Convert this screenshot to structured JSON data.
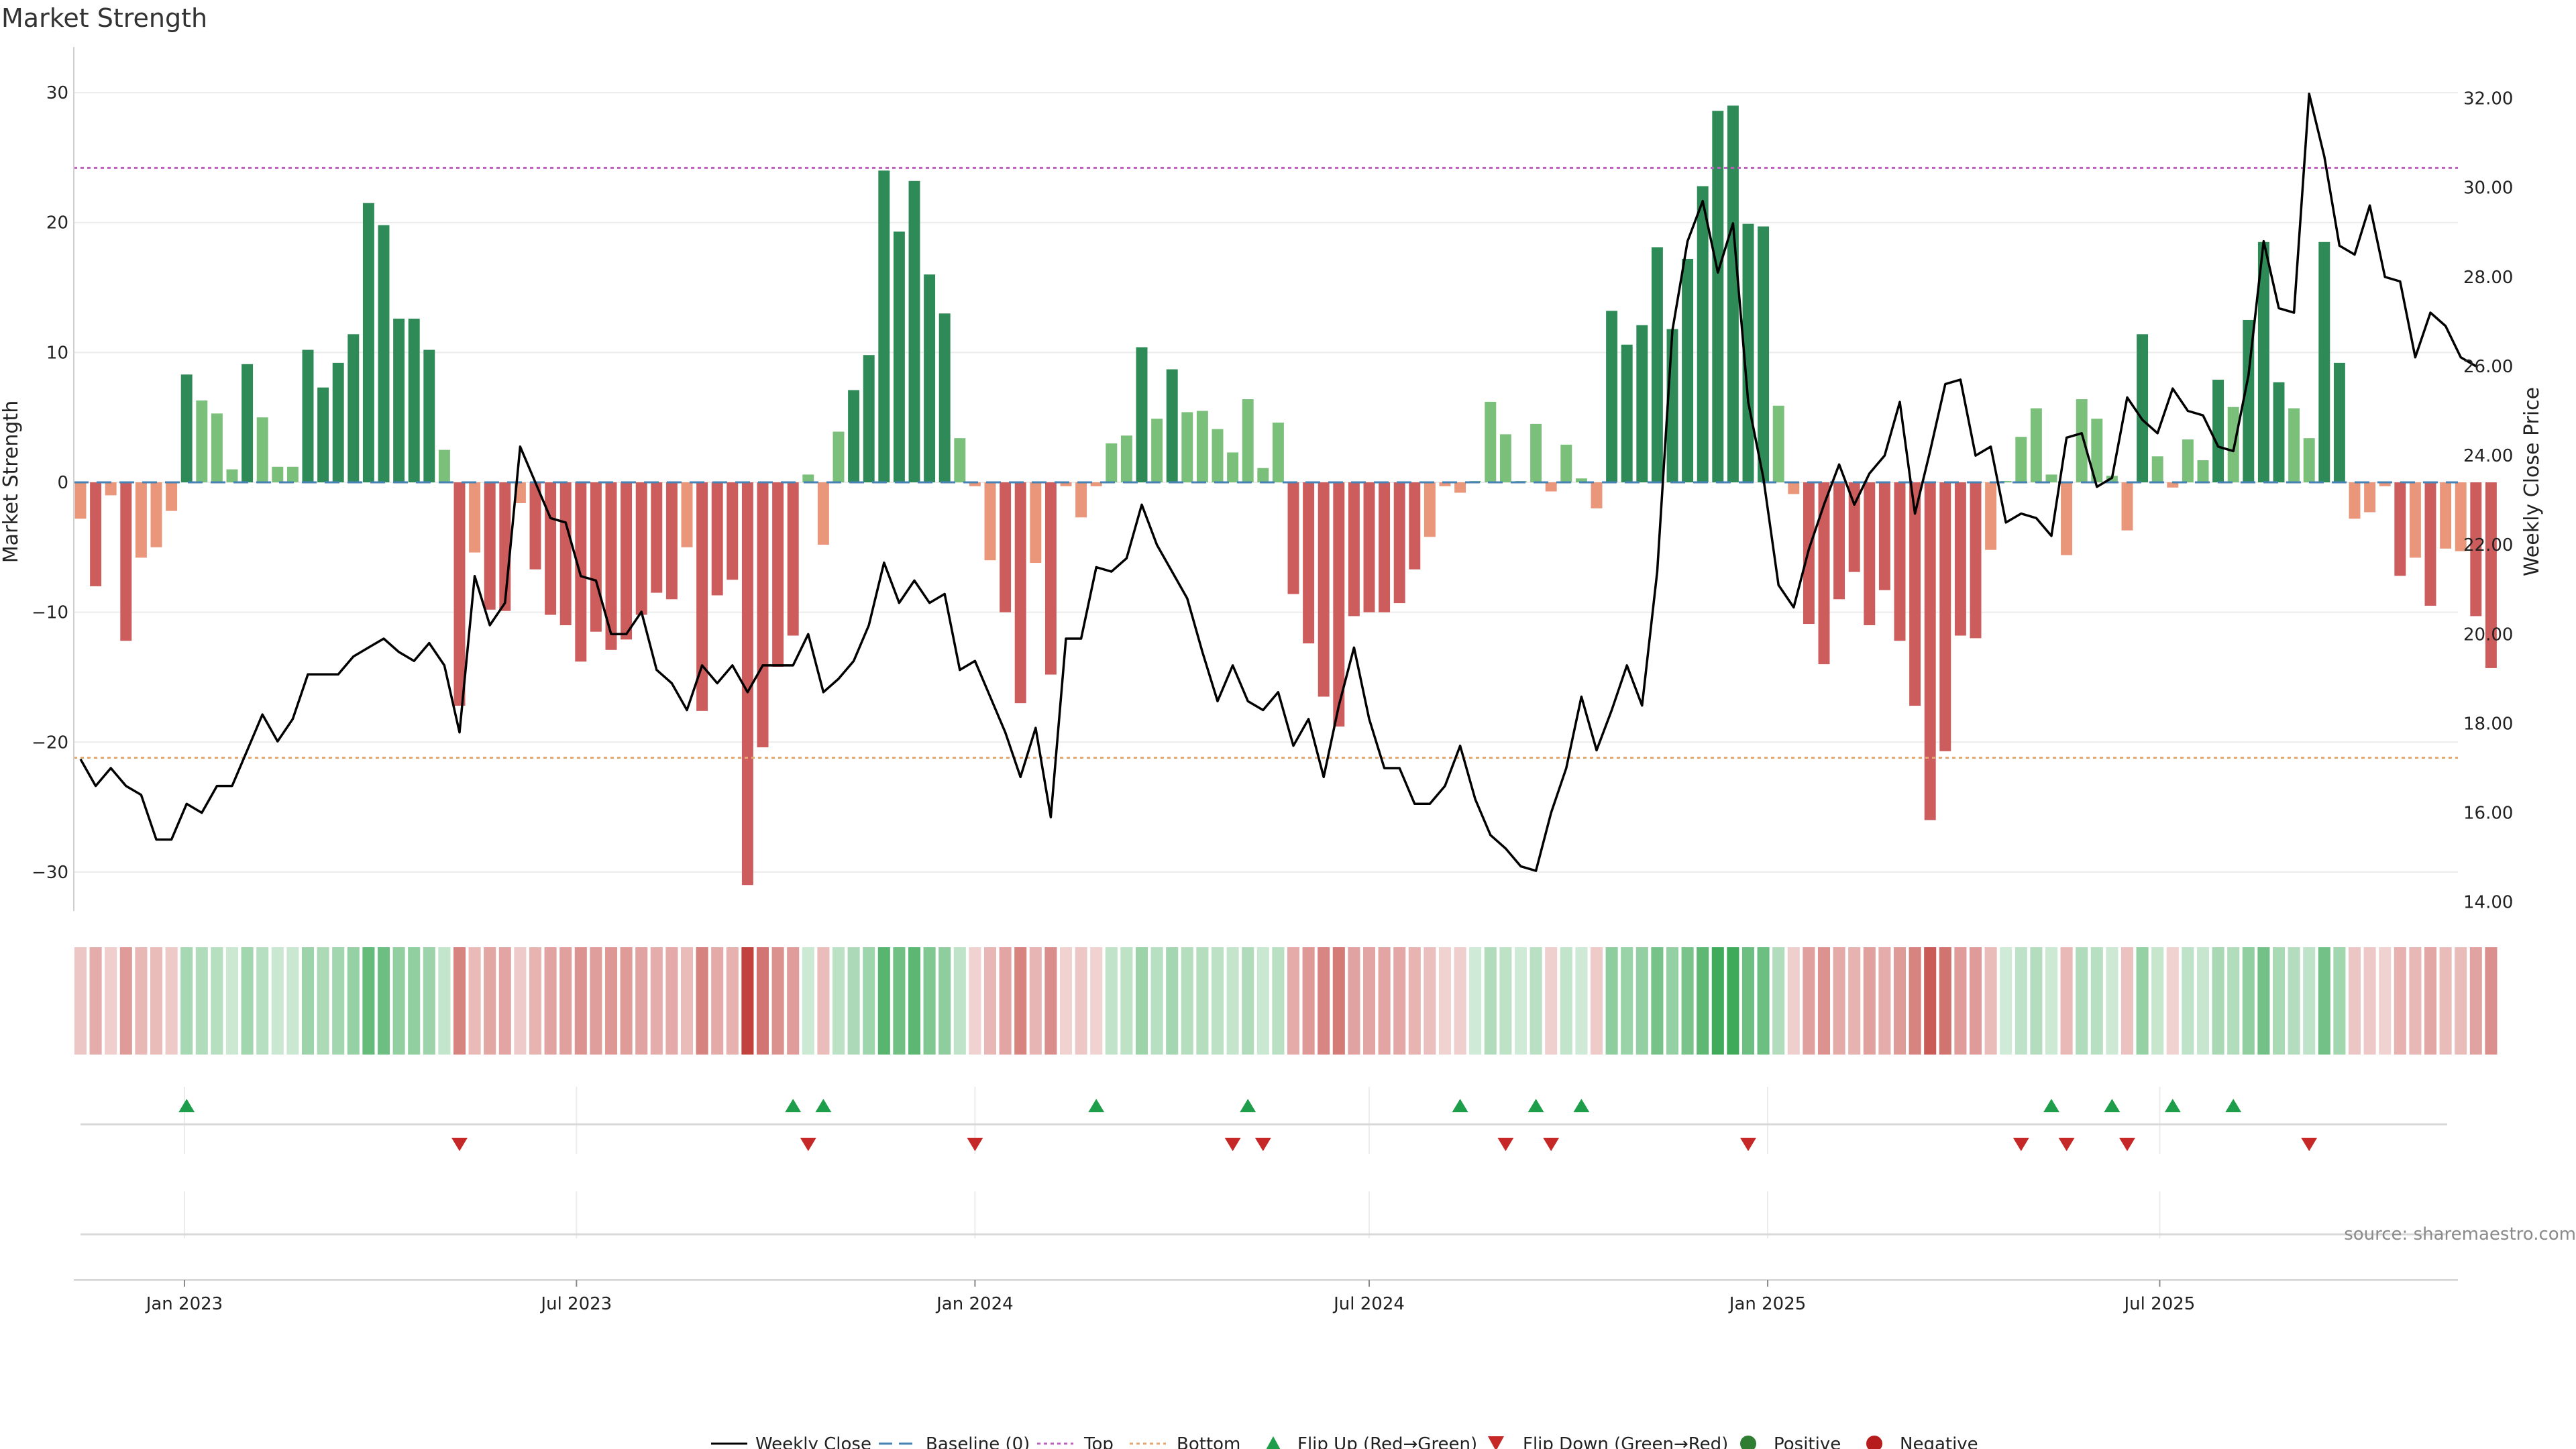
{
  "chart_data": {
    "type": "bar",
    "title": "Market Strength",
    "ylabel": "Market Strength",
    "y2label": "Weekly Close Price",
    "ylim": [
      -33,
      33
    ],
    "y2lim": [
      13.8,
      33.0
    ],
    "yticks": [
      30,
      20,
      10,
      0,
      -10,
      -20,
      -30
    ],
    "ytick_labels": [
      "30",
      "20",
      "10",
      "0",
      "−10",
      "−20",
      "−30"
    ],
    "y2ticks": [
      14,
      16,
      18,
      20,
      22,
      24,
      26,
      28,
      30,
      32
    ],
    "y2tick_labels": [
      "14.00",
      "16.00",
      "18.00",
      "20.00",
      "22.00",
      "24.00",
      "26.00",
      "28.00",
      "30.00",
      "32.00"
    ],
    "top_level": 24.2,
    "bottom_level": -21.2,
    "start_date": "2022-11-14",
    "step_days": 7,
    "xticks": [
      {
        "label": "Jan 2023",
        "date": "2023-01-01"
      },
      {
        "label": "Jul 2023",
        "date": "2023-07-01"
      },
      {
        "label": "Jan 2024",
        "date": "2024-01-01"
      },
      {
        "label": "Jul 2024",
        "date": "2024-07-01"
      },
      {
        "label": "Jan 2025",
        "date": "2025-01-01"
      },
      {
        "label": "Jul 2025",
        "date": "2025-07-01"
      }
    ],
    "strength": [
      -2.8,
      -8,
      -1,
      -12.2,
      -5.8,
      -5,
      -2.2,
      8.3,
      6.3,
      5.3,
      1,
      9.1,
      5,
      1.2,
      1.2,
      10.2,
      7.3,
      9.2,
      11.4,
      21.5,
      19.8,
      12.6,
      12.6,
      10.2,
      2.5,
      -17.2,
      -5.4,
      -9.8,
      -9.9,
      -1.6,
      -6.7,
      -10.2,
      -11,
      -13.8,
      -11.5,
      -12.9,
      -12.1,
      -10.2,
      -8.5,
      -9,
      -5,
      -17.6,
      -8.7,
      -7.5,
      -31,
      -20.4,
      -14.2,
      -11.8,
      0.6,
      -4.8,
      3.9,
      7.1,
      9.8,
      24,
      19.3,
      23.2,
      16,
      13,
      3.4,
      -0.3,
      -6,
      -10,
      -17,
      -6.2,
      -14.8,
      -0.3,
      -2.7,
      -0.3,
      3,
      3.6,
      10.4,
      4.9,
      8.7,
      5.4,
      5.5,
      4.1,
      2.3,
      6.4,
      1.1,
      4.6,
      -8.6,
      -12.4,
      -16.5,
      -18.8,
      -10.3,
      -10,
      -10,
      -9.3,
      -6.7,
      -4.2,
      -0.3,
      -0.8,
      0.1,
      6.2,
      3.7,
      0.1,
      4.5,
      -0.7,
      2.9,
      0.3,
      -2,
      13.2,
      10.6,
      12.1,
      18.1,
      11.8,
      17.2,
      22.8,
      28.6,
      29,
      19.9,
      19.7,
      5.9,
      -0.9,
      -10.9,
      -14,
      -9,
      -6.9,
      -11,
      -8.3,
      -12.2,
      -17.2,
      -26,
      -20.7,
      -11.8,
      -12,
      -5.2,
      0.1,
      3.5,
      5.7,
      0.6,
      -5.6,
      6.4,
      4.9,
      0.5,
      -3.7,
      11.4,
      2,
      -0.4,
      3.3,
      1.7,
      7.9,
      5.8,
      12.5,
      18.5,
      7.7,
      5.7,
      3.4,
      18.5,
      9.2,
      -2.8,
      -2.3,
      -0.3,
      -7.2,
      -5.8,
      -9.5,
      -5.1,
      -5.3,
      -10.3,
      -14.3
    ],
    "flip_up": [
      7,
      47,
      49,
      67,
      77,
      91,
      96,
      99,
      130,
      134,
      138,
      142
    ],
    "flip_down": [
      25,
      48,
      59,
      76,
      78,
      94,
      97,
      110,
      128,
      131,
      135,
      147
    ],
    "close": [
      17.2,
      16.6,
      17,
      16.6,
      16.4,
      15.4,
      15.4,
      16.2,
      16,
      16.6,
      16.6,
      17.4,
      18.2,
      17.6,
      18.1,
      19.1,
      19.1,
      19.1,
      19.5,
      19.7,
      19.9,
      19.6,
      19.4,
      19.8,
      19.3,
      17.8,
      21.3,
      20.2,
      20.7,
      24.2,
      23.4,
      22.6,
      22.5,
      21.3,
      21.2,
      20,
      20,
      20.5,
      19.2,
      18.9,
      18.3,
      19.3,
      18.9,
      19.3,
      18.7,
      19.3,
      19.3,
      19.3,
      20,
      18.7,
      19,
      19.4,
      20.2,
      21.6,
      20.7,
      21.2,
      20.7,
      20.9,
      19.2,
      19.4,
      18.6,
      17.8,
      16.8,
      17.9,
      15.9,
      19.9,
      19.9,
      21.5,
      21.4,
      21.7,
      22.9,
      22,
      21.4,
      20.8,
      19.6,
      18.5,
      19.3,
      18.5,
      18.3,
      18.7,
      17.5,
      18.1,
      16.8,
      18.4,
      19.7,
      18.1,
      17,
      17,
      16.2,
      16.2,
      16.6,
      17.5,
      16.3,
      15.5,
      15.2,
      14.8,
      14.7,
      16,
      17,
      18.6,
      17.4,
      18.3,
      19.3,
      18.4,
      21.4,
      26.8,
      28.8,
      29.7,
      28.1,
      29.2,
      25.2,
      23.5,
      21.1,
      20.6,
      21.9,
      22.9,
      23.8,
      22.9,
      23.6,
      24,
      25.2,
      22.7,
      24.1,
      25.6,
      25.7,
      24,
      24.2,
      22.5,
      22.7,
      22.6,
      22.2,
      24.4,
      24.5,
      23.3,
      23.5,
      25.3,
      24.8,
      24.5,
      25.5,
      25,
      24.9,
      24.2,
      24.1,
      25.8,
      28.8,
      27.3,
      27.2,
      32.1,
      30.7,
      28.7,
      28.5,
      29.6,
      28,
      27.9,
      26.2,
      27.2,
      26.9,
      26.2,
      26
    ]
  },
  "colors": {
    "pos_dark": "#2e8b57",
    "pos_light": "#7ac07b",
    "neg_dark": "#cd5c5c",
    "neg_light": "#e9967a",
    "line": "#000000",
    "baseline": "#4682b4",
    "top": "#bf5fbf",
    "bottom": "#e5a770",
    "flip_up": "#1e9e4a",
    "flip_down": "#c62828",
    "positive": "#2e7d32",
    "negative": "#b71c1c"
  },
  "legend": {
    "weekly_close": "Weekly Close",
    "baseline": "Baseline (0)",
    "top": "Top",
    "bottom": "Bottom",
    "flip_up": "Flip Up (Red→Green)",
    "flip_down": "Flip Down (Green→Red)",
    "positive": "Positive",
    "negative": "Negative"
  },
  "source": "source: sharemaestro.com"
}
